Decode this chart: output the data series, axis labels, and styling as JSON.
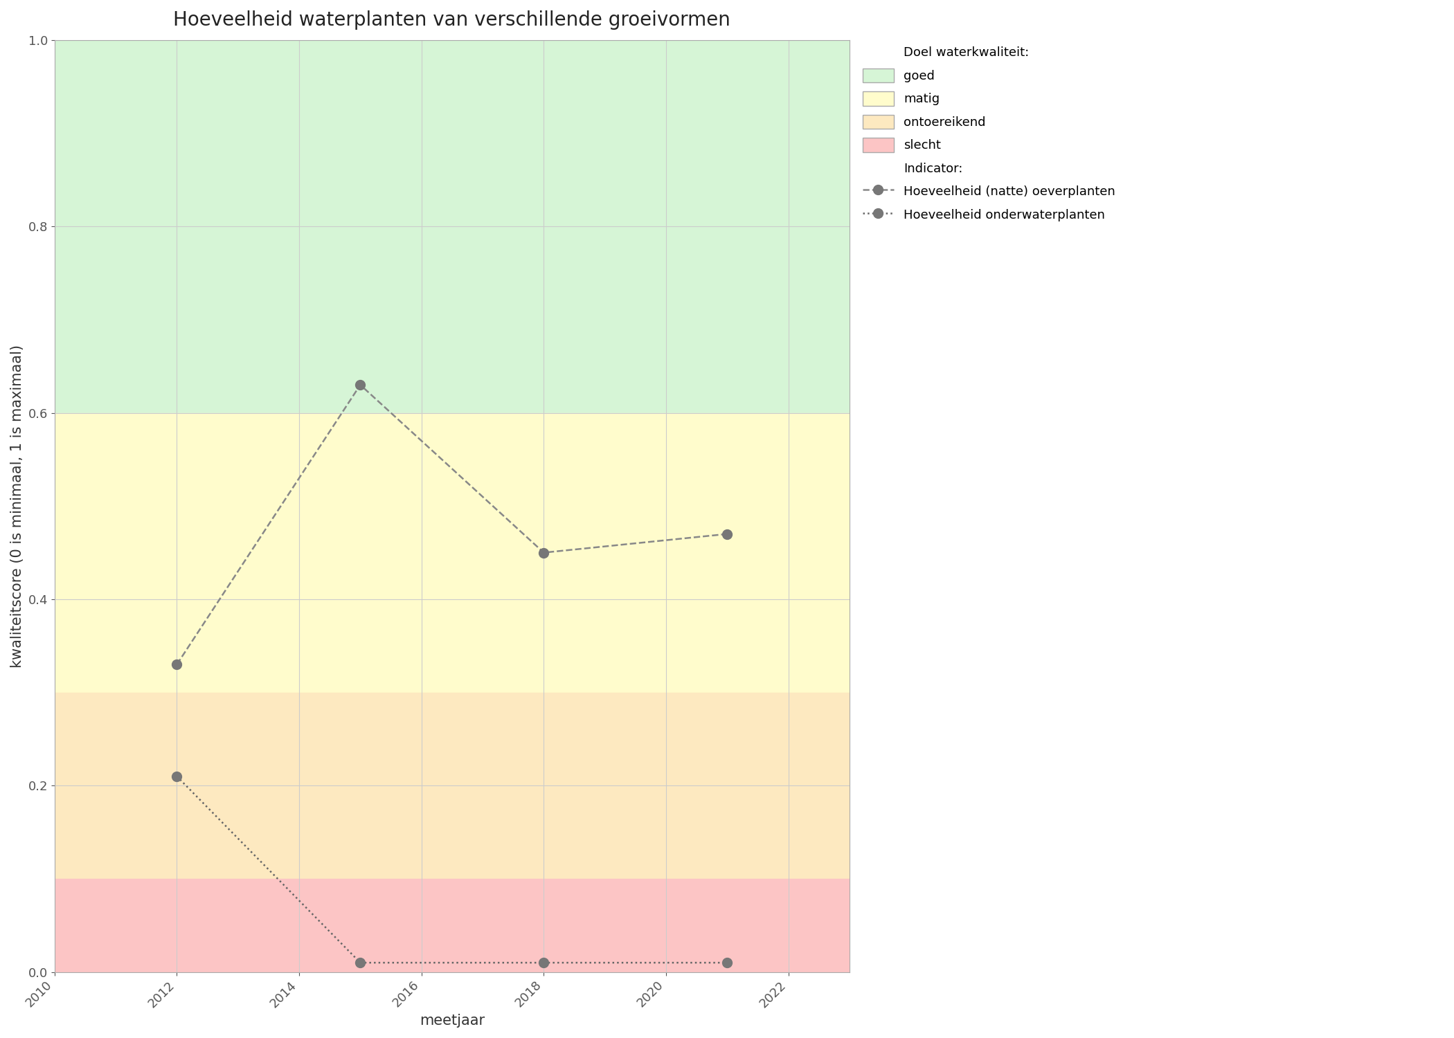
{
  "title": "Hoeveelheid waterplanten van verschillende groeivormen",
  "xlabel": "meetjaar",
  "ylabel": "kwaliteitscore (0 is minimaal, 1 is maximaal)",
  "xlim": [
    2010,
    2023
  ],
  "ylim": [
    0.0,
    1.0
  ],
  "xticks": [
    2010,
    2012,
    2014,
    2016,
    2018,
    2020,
    2022
  ],
  "yticks": [
    0.0,
    0.2,
    0.4,
    0.6,
    0.8,
    1.0
  ],
  "background_bands": [
    {
      "ymin": 0.6,
      "ymax": 1.0,
      "color": "#d6f5d6",
      "label": "goed"
    },
    {
      "ymin": 0.3,
      "ymax": 0.6,
      "color": "#fffccc",
      "label": "matig"
    },
    {
      "ymin": 0.1,
      "ymax": 0.3,
      "color": "#fde9c0",
      "label": "ontoereikend"
    },
    {
      "ymin": 0.0,
      "ymax": 0.1,
      "color": "#fcc5c5",
      "label": "slecht"
    }
  ],
  "series": [
    {
      "name": "Hoeveelheid (natte) oeverplanten",
      "x": [
        2012,
        2015,
        2018,
        2021
      ],
      "y": [
        0.33,
        0.63,
        0.45,
        0.47
      ],
      "linestyle": "dashed",
      "color": "#888888",
      "marker": "o",
      "markersize": 10,
      "linewidth": 1.8
    },
    {
      "name": "Hoeveelheid onderwaterplanten",
      "x": [
        2012,
        2015,
        2018,
        2021
      ],
      "y": [
        0.21,
        0.01,
        0.01,
        0.01
      ],
      "linestyle": "dotted",
      "color": "#666666",
      "marker": "o",
      "markersize": 10,
      "linewidth": 1.8
    }
  ],
  "legend_title_quality": "Doel waterkwaliteit:",
  "legend_title_indicator": "Indicator:",
  "grid_color": "#cccccc",
  "grid_linewidth": 0.8,
  "title_fontsize": 20,
  "label_fontsize": 15,
  "tick_fontsize": 13,
  "legend_fontsize": 13
}
